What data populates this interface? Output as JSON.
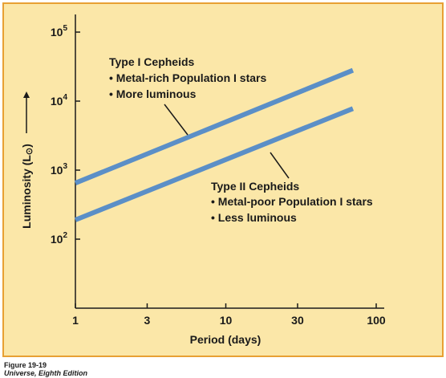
{
  "chart_data": {
    "type": "line",
    "xlabel": "Period (days)",
    "ylabel": "Luminosity (L",
    "ylabel_symbol": "⊙",
    "ylabel_close": ")",
    "x_scale": "log",
    "y_scale": "log",
    "xlim": [
      1,
      100
    ],
    "ylim": [
      10,
      100000
    ],
    "x_ticks": [
      {
        "value": 1,
        "label": "1"
      },
      {
        "value": 3,
        "label": "3"
      },
      {
        "value": 10,
        "label": "10"
      },
      {
        "value": 30,
        "label": "30"
      },
      {
        "value": 100,
        "label": "100"
      }
    ],
    "y_ticks": [
      {
        "value": 100,
        "base": "10",
        "exp": "2"
      },
      {
        "value": 1000,
        "base": "10",
        "exp": "3"
      },
      {
        "value": 10000,
        "base": "10",
        "exp": "4"
      },
      {
        "value": 100000,
        "base": "10",
        "exp": "5"
      }
    ],
    "series": [
      {
        "color": "#5b8fc7",
        "x": [
          1,
          70
        ],
        "y": [
          650,
          28000
        ]
      },
      {
        "color": "#5b8fc7",
        "x": [
          1,
          70
        ],
        "y": [
          190,
          7800
        ]
      }
    ],
    "annotations": [
      {
        "title": "Type I Cepheids",
        "bullets": [
          "• Metal-rich Population I stars",
          "• More luminous"
        ]
      },
      {
        "title": "Type II Cepheids",
        "bullets": [
          "• Metal-poor Population I stars",
          "• Less luminous"
        ]
      }
    ],
    "grid": false,
    "background_color": "#fbe7a8",
    "border_color": "#e8a033"
  },
  "caption": {
    "figure": "Figure 19-19",
    "source": "Universe, Eighth Edition"
  }
}
